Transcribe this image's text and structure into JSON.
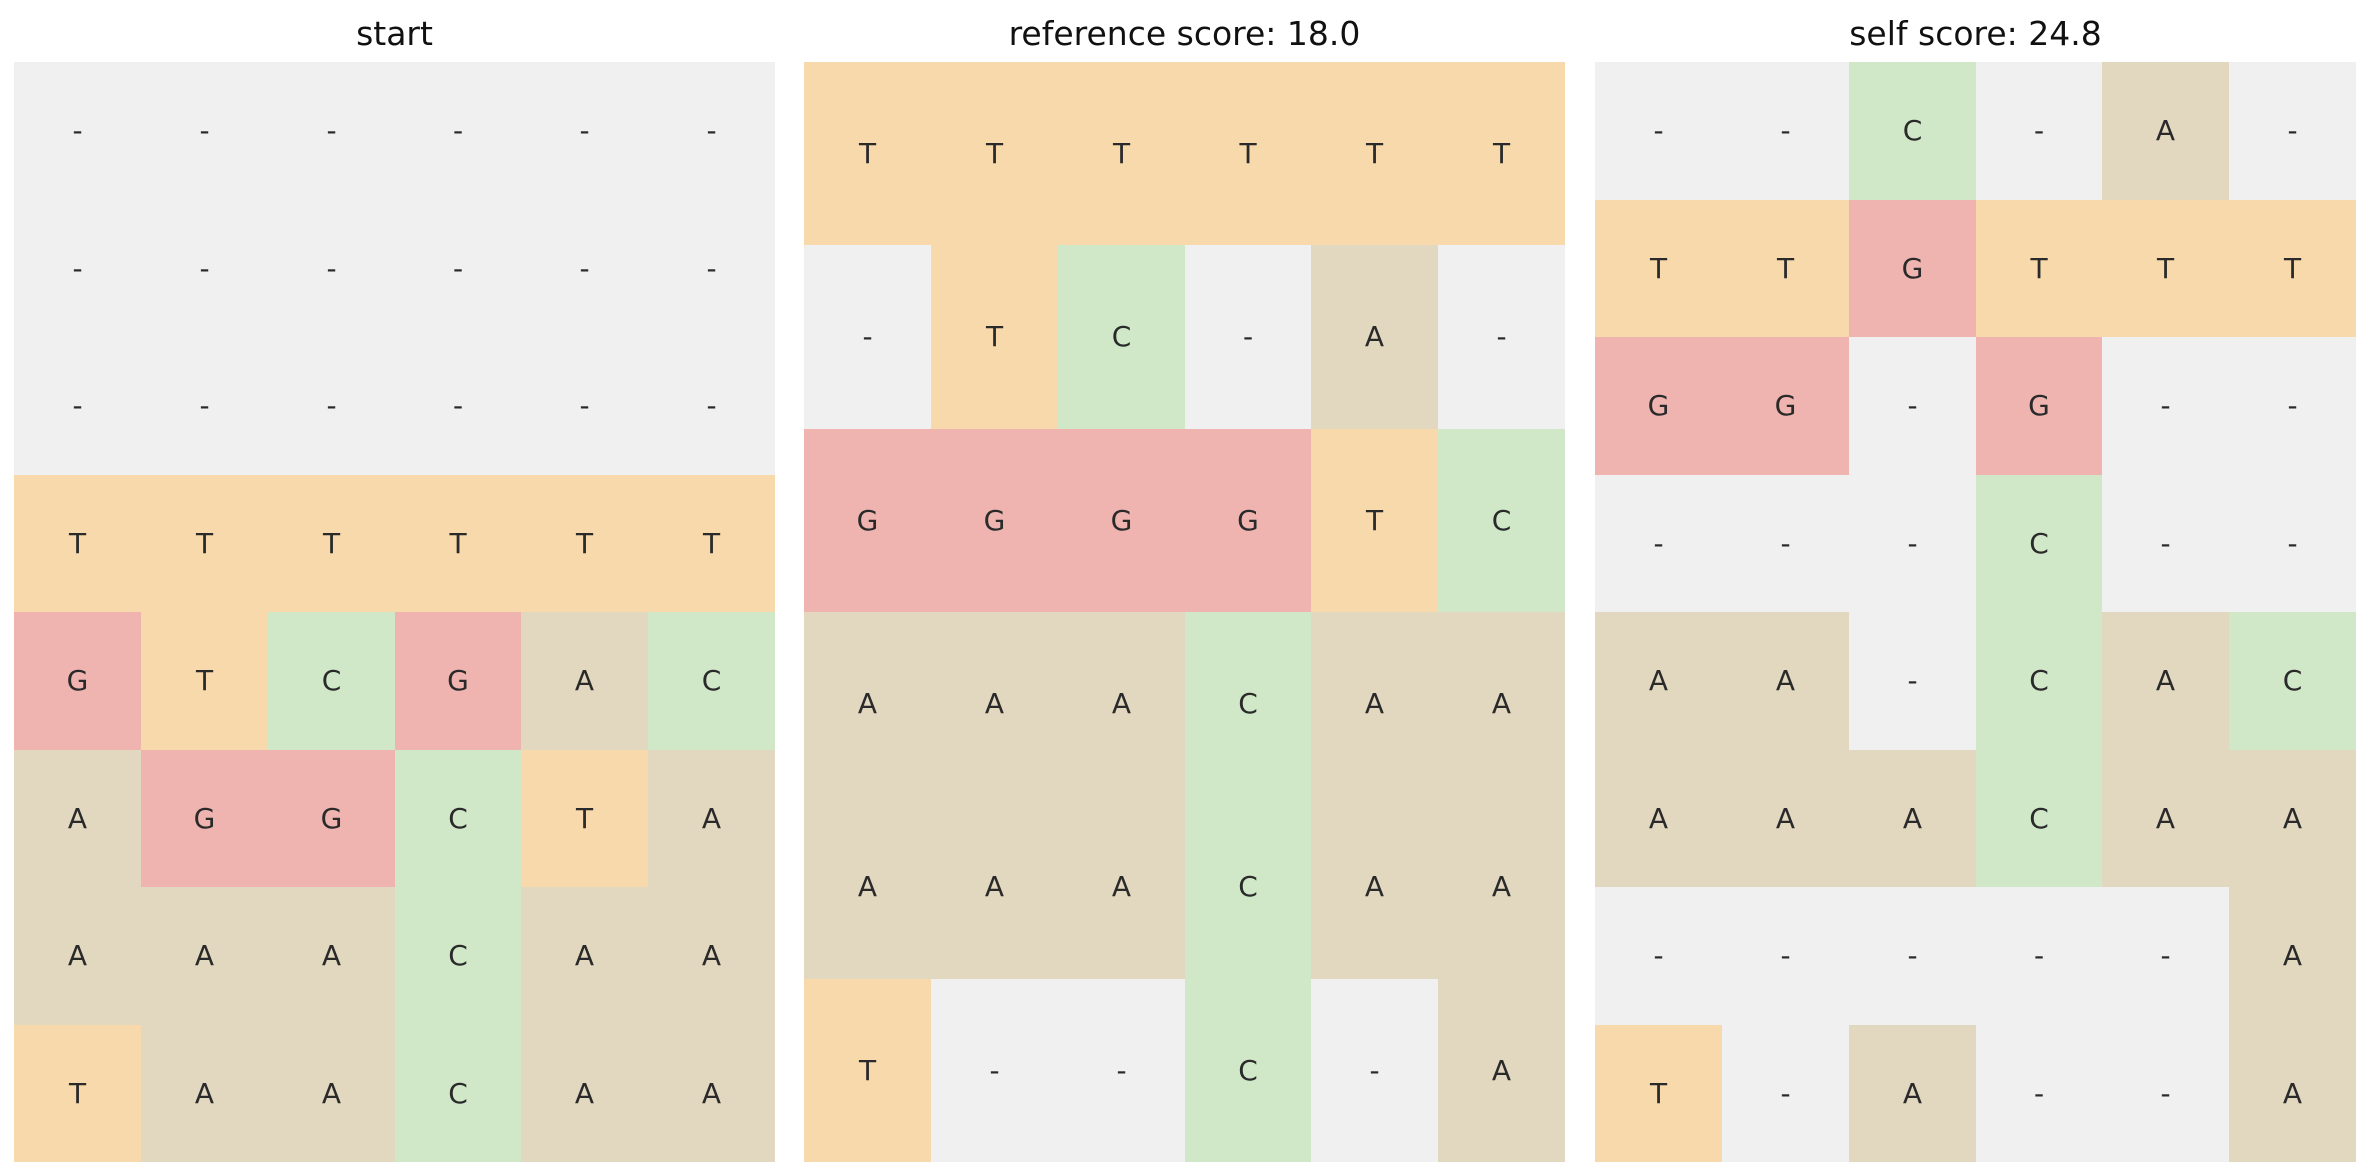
{
  "colors": {
    "T": "#f7d9ab",
    "G": "#efb4b0",
    "C": "#d0e8c8",
    "A": "#e2d7bf",
    "-": "#f0f0f0"
  },
  "panels": [
    {
      "title": "start",
      "rows": [
        [
          "-",
          "-",
          "-",
          "-",
          "-",
          "-"
        ],
        [
          "-",
          "-",
          "-",
          "-",
          "-",
          "-"
        ],
        [
          "-",
          "-",
          "-",
          "-",
          "-",
          "-"
        ],
        [
          "T",
          "T",
          "T",
          "T",
          "T",
          "T"
        ],
        [
          "G",
          "T",
          "C",
          "G",
          "A",
          "C"
        ],
        [
          "A",
          "G",
          "G",
          "C",
          "T",
          "A"
        ],
        [
          "A",
          "A",
          "A",
          "C",
          "A",
          "A"
        ],
        [
          "T",
          "A",
          "A",
          "C",
          "A",
          "A"
        ]
      ]
    },
    {
      "title": "reference score: 18.0",
      "rows": [
        [
          "T",
          "T",
          "T",
          "T",
          "T",
          "T"
        ],
        [
          "-",
          "T",
          "C",
          "-",
          "A",
          "-"
        ],
        [
          "G",
          "G",
          "G",
          "G",
          "T",
          "C"
        ],
        [
          "A",
          "A",
          "A",
          "C",
          "A",
          "A"
        ],
        [
          "A",
          "A",
          "A",
          "C",
          "A",
          "A"
        ],
        [
          "T",
          "-",
          "-",
          "C",
          "-",
          "A"
        ]
      ]
    },
    {
      "title": "self score: 24.8",
      "rows": [
        [
          "-",
          "-",
          "C",
          "-",
          "A",
          "-"
        ],
        [
          "T",
          "T",
          "G",
          "T",
          "T",
          "T"
        ],
        [
          "G",
          "G",
          "-",
          "G",
          "-",
          "-"
        ],
        [
          "-",
          "-",
          "-",
          "C",
          "-",
          "-"
        ],
        [
          "A",
          "A",
          "-",
          "C",
          "A",
          "C"
        ],
        [
          "A",
          "A",
          "A",
          "C",
          "A",
          "A"
        ],
        [
          "-",
          "-",
          "-",
          "-",
          "-",
          "A"
        ],
        [
          "T",
          "-",
          "A",
          "-",
          "-",
          "A"
        ]
      ]
    }
  ]
}
